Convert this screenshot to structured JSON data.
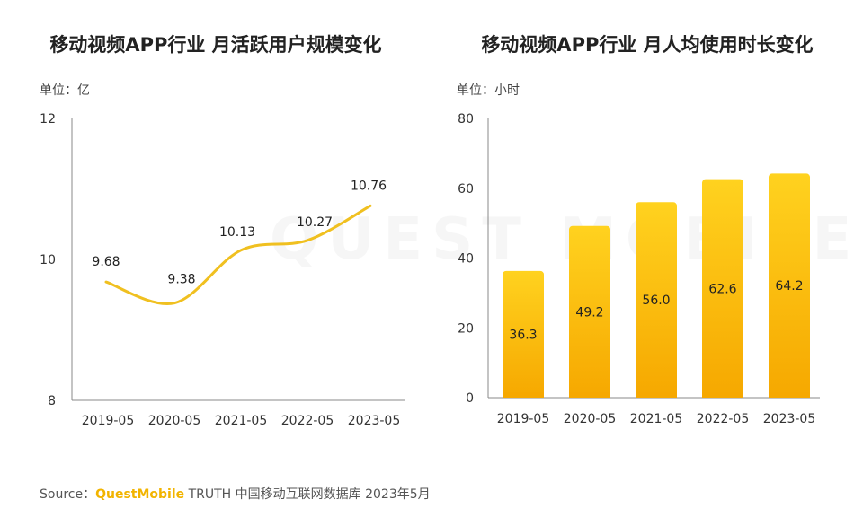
{
  "colors": {
    "accent": "#f2b400",
    "bar_top": "#ffd21f",
    "bar_bottom": "#f6a800",
    "line": "#f0c020"
  },
  "chart_data": [
    {
      "type": "line",
      "title": "移动视频APP行业 月活跃用户规模变化",
      "unit_label": "单位：亿",
      "categories": [
        "2019-05",
        "2020-05",
        "2021-05",
        "2022-05",
        "2023-05"
      ],
      "values": [
        9.68,
        9.38,
        10.13,
        10.27,
        10.76
      ],
      "value_labels": [
        "9.68",
        "9.38",
        "10.13",
        "10.27",
        "10.76"
      ],
      "yticks": [
        "8",
        "10",
        "12"
      ],
      "ylim": [
        8,
        12
      ]
    },
    {
      "type": "bar",
      "title": "移动视频APP行业 月人均使用时长变化",
      "unit_label": "单位：小时",
      "categories": [
        "2019-05",
        "2020-05",
        "2021-05",
        "2022-05",
        "2023-05"
      ],
      "values": [
        36.3,
        49.2,
        56.0,
        62.6,
        64.2
      ],
      "value_labels": [
        "36.3",
        "49.2",
        "56.0",
        "62.6",
        "64.2"
      ],
      "yticks": [
        "0",
        "20",
        "40",
        "60",
        "80"
      ],
      "ylim": [
        0,
        80
      ]
    }
  ],
  "footer": {
    "prefix": "Source：",
    "brand": "QuestMobile",
    "suffix": " TRUTH 中国移动互联网数据库 2023年5月"
  },
  "watermark": "QUEST MOBILE"
}
